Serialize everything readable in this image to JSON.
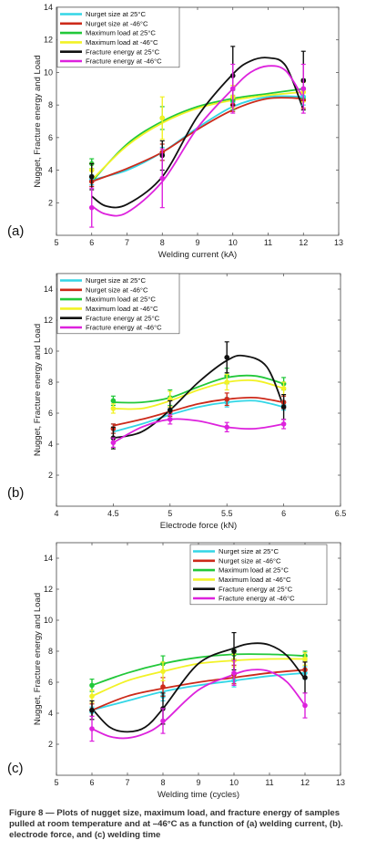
{
  "chart_data": [
    {
      "type": "line",
      "panel_label": "(a)",
      "xlabel": "Welding current (kA)",
      "ylabel": "Nugget, Fracture energy and Load",
      "xlim": [
        5,
        13
      ],
      "ylim": [
        0,
        14
      ],
      "xticks": [
        5,
        6,
        7,
        8,
        9,
        10,
        11,
        12,
        13
      ],
      "yticks": [
        2,
        4,
        6,
        8,
        10,
        12,
        14
      ],
      "x": [
        6,
        8,
        10,
        12
      ],
      "legend_position": "top-left",
      "series": [
        {
          "name": "Nurget size at 25°C",
          "color": "#33d6e6",
          "values": [
            3.4,
            5.0,
            8.2,
            8.5
          ],
          "err": [
            0.3,
            0.4,
            0.4,
            0.5
          ],
          "curve": [
            [
              6,
              3.4
            ],
            [
              7,
              4.0
            ],
            [
              8,
              5.1
            ],
            [
              9,
              6.6
            ],
            [
              10,
              7.9
            ],
            [
              11,
              8.5
            ],
            [
              12,
              8.5
            ]
          ]
        },
        {
          "name": "Nurget size at -46°C",
          "color": "#cc2a1a",
          "values": [
            3.3,
            5.1,
            8.0,
            8.3
          ],
          "err": [
            0.3,
            0.5,
            0.4,
            0.5
          ],
          "curve": [
            [
              6,
              3.3
            ],
            [
              7,
              4.1
            ],
            [
              8,
              5.1
            ],
            [
              9,
              6.5
            ],
            [
              10,
              7.7
            ],
            [
              11,
              8.4
            ],
            [
              12,
              8.4
            ]
          ]
        },
        {
          "name": "Maximum load at 25°C",
          "color": "#22c83a",
          "values": [
            4.4,
            7.2,
            8.3,
            9.0
          ],
          "err": [
            0.3,
            0.7,
            0.6,
            0.6
          ],
          "curve": [
            [
              6,
              3.3
            ],
            [
              7,
              5.6
            ],
            [
              8,
              7.0
            ],
            [
              9,
              7.9
            ],
            [
              10,
              8.4
            ],
            [
              11,
              8.7
            ],
            [
              12,
              9.0
            ]
          ]
        },
        {
          "name": "Maximum load at -46°C",
          "color": "#f2f226",
          "values": [
            4.0,
            7.2,
            8.5,
            8.8
          ],
          "err": [
            0.4,
            1.3,
            0.7,
            0.6
          ],
          "curve": [
            [
              6,
              3.4
            ],
            [
              7,
              5.5
            ],
            [
              8,
              6.9
            ],
            [
              9,
              7.8
            ],
            [
              10,
              8.3
            ],
            [
              11,
              8.6
            ],
            [
              12,
              8.8
            ]
          ]
        },
        {
          "name": "Fracture energy at 25°C",
          "color": "#111111",
          "values": [
            3.6,
            4.9,
            9.8,
            9.5
          ],
          "err": [
            0.8,
            0.9,
            1.8,
            1.8
          ],
          "curve": [
            [
              6,
              2.4
            ],
            [
              6.4,
              1.8
            ],
            [
              7,
              1.9
            ],
            [
              8,
              3.6
            ],
            [
              9,
              7.3
            ],
            [
              10,
              9.9
            ],
            [
              10.5,
              10.7
            ],
            [
              11,
              10.9
            ],
            [
              11.5,
              10.4
            ],
            [
              12,
              7.7
            ]
          ]
        },
        {
          "name": "Fracture energy at -46°C",
          "color": "#dd22dd",
          "values": [
            1.7,
            3.5,
            9.0,
            9.0
          ],
          "err": [
            1.2,
            1.8,
            1.5,
            1.5
          ],
          "curve": [
            [
              6,
              1.8
            ],
            [
              6.4,
              1.3
            ],
            [
              7,
              1.4
            ],
            [
              8,
              3.3
            ],
            [
              9,
              6.6
            ],
            [
              10,
              9.0
            ],
            [
              10.5,
              10.0
            ],
            [
              11,
              10.4
            ],
            [
              11.5,
              10.1
            ],
            [
              12,
              8.4
            ]
          ]
        }
      ]
    },
    {
      "type": "line",
      "panel_label": "(b)",
      "xlabel": "Electrode force (kN)",
      "ylabel": "Nugget, Fracture energy and Load",
      "xlim": [
        4,
        6.5
      ],
      "ylim": [
        0,
        15
      ],
      "xticks": [
        4,
        4.5,
        5,
        5.5,
        6,
        6.5
      ],
      "yticks": [
        2,
        4,
        6,
        8,
        10,
        12,
        14
      ],
      "x": [
        4.5,
        5,
        5.5,
        6
      ],
      "legend_position": "top-left",
      "series": [
        {
          "name": "Nurget size at 25°C",
          "color": "#33d6e6",
          "values": [
            5.0,
            6.0,
            6.7,
            6.5
          ],
          "err": [
            0.3,
            0.3,
            0.3,
            0.3
          ],
          "curve": [
            [
              4.5,
              4.8
            ],
            [
              4.75,
              5.3
            ],
            [
              5,
              5.9
            ],
            [
              5.25,
              6.4
            ],
            [
              5.5,
              6.7
            ],
            [
              5.75,
              6.8
            ],
            [
              6,
              6.4
            ]
          ]
        },
        {
          "name": "Nurget size at -46°C",
          "color": "#cc2a1a",
          "values": [
            5.0,
            6.1,
            6.9,
            6.7
          ],
          "err": [
            0.3,
            0.3,
            0.4,
            0.4
          ],
          "curve": [
            [
              4.5,
              5.2
            ],
            [
              4.75,
              5.6
            ],
            [
              5,
              6.1
            ],
            [
              5.25,
              6.6
            ],
            [
              5.5,
              6.9
            ],
            [
              5.75,
              7.0
            ],
            [
              6,
              6.7
            ]
          ]
        },
        {
          "name": "Maximum load at 25°C",
          "color": "#22c83a",
          "values": [
            6.8,
            7.0,
            8.4,
            7.9
          ],
          "err": [
            0.3,
            0.5,
            0.5,
            0.4
          ],
          "curve": [
            [
              4.5,
              6.7
            ],
            [
              4.75,
              6.7
            ],
            [
              5,
              7.0
            ],
            [
              5.25,
              7.7
            ],
            [
              5.5,
              8.3
            ],
            [
              5.75,
              8.4
            ],
            [
              6,
              7.9
            ]
          ]
        },
        {
          "name": "Maximum load at -46°C",
          "color": "#f2f226",
          "values": [
            6.3,
            6.9,
            8.0,
            7.6
          ],
          "err": [
            0.3,
            0.5,
            0.5,
            0.4
          ],
          "curve": [
            [
              4.5,
              6.3
            ],
            [
              4.75,
              6.3
            ],
            [
              5,
              6.8
            ],
            [
              5.25,
              7.5
            ],
            [
              5.5,
              8.0
            ],
            [
              5.75,
              8.1
            ],
            [
              6,
              7.6
            ]
          ]
        },
        {
          "name": "Fracture energy at 25°C",
          "color": "#111111",
          "values": [
            4.4,
            6.2,
            9.6,
            6.4
          ],
          "err": [
            0.7,
            0.6,
            1.0,
            0.8
          ],
          "curve": [
            [
              4.5,
              4.4
            ],
            [
              4.75,
              4.8
            ],
            [
              5,
              6.2
            ],
            [
              5.25,
              8.0
            ],
            [
              5.5,
              9.4
            ],
            [
              5.65,
              9.7
            ],
            [
              5.85,
              9.0
            ],
            [
              6,
              6.4
            ]
          ]
        },
        {
          "name": "Fracture energy at -46°C",
          "color": "#dd22dd",
          "values": [
            4.1,
            5.6,
            5.1,
            5.3
          ],
          "err": [
            0.3,
            0.3,
            0.3,
            0.3
          ],
          "curve": [
            [
              4.5,
              4.1
            ],
            [
              4.75,
              5.1
            ],
            [
              5,
              5.6
            ],
            [
              5.25,
              5.5
            ],
            [
              5.5,
              5.1
            ],
            [
              5.75,
              5.0
            ],
            [
              6,
              5.3
            ]
          ]
        }
      ]
    },
    {
      "type": "line",
      "panel_label": "(c)",
      "xlabel": "Welding time (cycles)",
      "ylabel": "Nugget, Fracture energy and Load",
      "xlim": [
        5,
        13
      ],
      "ylim": [
        0,
        15
      ],
      "xticks": [
        5,
        6,
        7,
        8,
        9,
        10,
        11,
        12,
        13
      ],
      "yticks": [
        2,
        4,
        6,
        8,
        10,
        12,
        14
      ],
      "x": [
        6,
        8,
        10,
        12
      ],
      "legend_position": "top-right",
      "series": [
        {
          "name": "Nurget size at 25°C",
          "color": "#33d6e6",
          "values": [
            4.1,
            5.1,
            6.1,
            6.6
          ],
          "err": [
            0.3,
            0.3,
            0.4,
            0.4
          ],
          "curve": [
            [
              6,
              4.2
            ],
            [
              7,
              4.8
            ],
            [
              8,
              5.4
            ],
            [
              9,
              5.8
            ],
            [
              10,
              6.1
            ],
            [
              11,
              6.4
            ],
            [
              12,
              6.6
            ]
          ]
        },
        {
          "name": "Nurget size at -46°C",
          "color": "#cc2a1a",
          "values": [
            4.2,
            5.7,
            6.5,
            6.8
          ],
          "err": [
            0.4,
            0.6,
            0.6,
            0.5
          ],
          "curve": [
            [
              6,
              4.2
            ],
            [
              7,
              5.1
            ],
            [
              8,
              5.6
            ],
            [
              9,
              6.0
            ],
            [
              10,
              6.3
            ],
            [
              11,
              6.6
            ],
            [
              12,
              6.8
            ]
          ]
        },
        {
          "name": "Maximum load at 25°C",
          "color": "#22c83a",
          "values": [
            5.8,
            7.2,
            7.8,
            7.7
          ],
          "err": [
            0.4,
            0.5,
            0.3,
            0.3
          ],
          "curve": [
            [
              6,
              5.8
            ],
            [
              7,
              6.6
            ],
            [
              8,
              7.2
            ],
            [
              9,
              7.6
            ],
            [
              10,
              7.8
            ],
            [
              11,
              7.8
            ],
            [
              12,
              7.7
            ]
          ]
        },
        {
          "name": "Maximum load at -46°C",
          "color": "#f2f226",
          "values": [
            5.1,
            6.7,
            7.4,
            7.5
          ],
          "err": [
            0.4,
            0.6,
            0.4,
            0.4
          ],
          "curve": [
            [
              6,
              5.1
            ],
            [
              7,
              6.1
            ],
            [
              8,
              6.7
            ],
            [
              9,
              7.2
            ],
            [
              10,
              7.4
            ],
            [
              11,
              7.5
            ],
            [
              12,
              7.5
            ]
          ]
        },
        {
          "name": "Fracture energy at 25°C",
          "color": "#111111",
          "values": [
            4.2,
            4.3,
            8.0,
            6.3
          ],
          "err": [
            0.6,
            1.0,
            1.2,
            1.0
          ],
          "curve": [
            [
              6,
              4.3
            ],
            [
              6.5,
              3.1
            ],
            [
              7,
              2.8
            ],
            [
              7.5,
              3.1
            ],
            [
              8,
              4.3
            ],
            [
              9,
              7.2
            ],
            [
              10,
              8.2
            ],
            [
              10.5,
              8.5
            ],
            [
              11,
              8.4
            ],
            [
              11.5,
              7.7
            ],
            [
              12,
              6.2
            ]
          ]
        },
        {
          "name": "Fracture energy at -46°C",
          "color": "#dd22dd",
          "values": [
            3.0,
            3.5,
            6.6,
            4.5
          ],
          "err": [
            0.8,
            0.8,
            0.8,
            0.8
          ],
          "curve": [
            [
              6,
              3.0
            ],
            [
              6.5,
              2.5
            ],
            [
              7,
              2.4
            ],
            [
              7.5,
              2.7
            ],
            [
              8,
              3.4
            ],
            [
              9,
              5.5
            ],
            [
              10,
              6.5
            ],
            [
              10.5,
              6.8
            ],
            [
              11,
              6.7
            ],
            [
              11.5,
              6.0
            ],
            [
              12,
              4.5
            ]
          ]
        }
      ]
    }
  ],
  "caption": "Figure 8 — Plots of nugget size, maximum load, and fracture energy of samples pulled at room temperature and at –46°C as a function of (a) welding current, (b). electrode force, and (c) welding time"
}
